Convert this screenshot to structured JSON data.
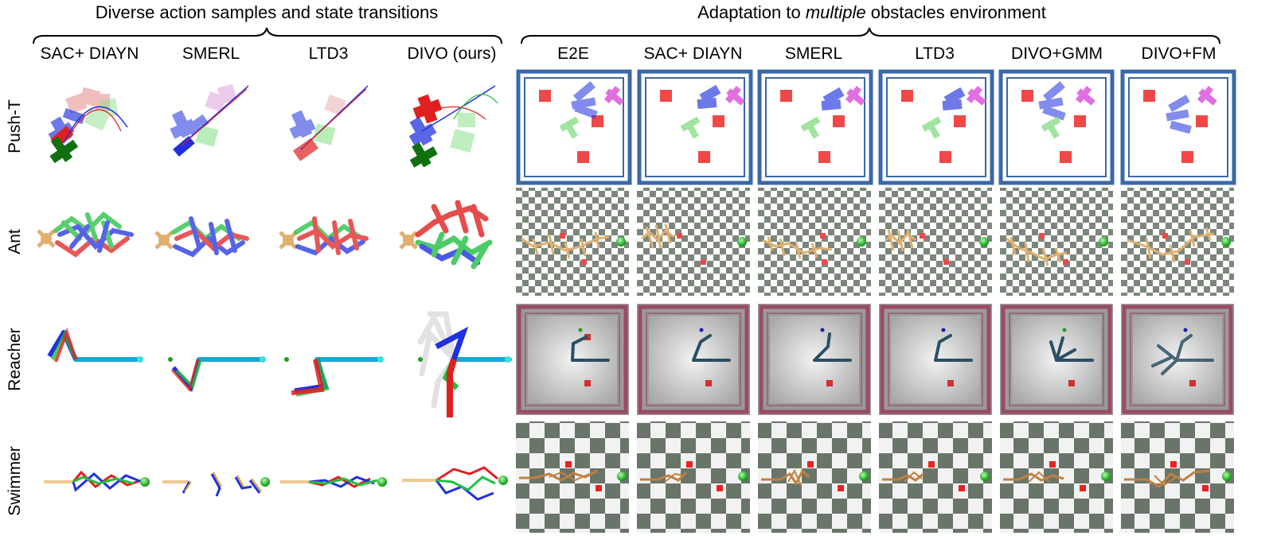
{
  "left_panel": {
    "title": "Diverse action samples and state transitions",
    "columns": [
      "SAC+ DIAYN",
      "SMERL",
      "LTD3",
      "DIVO (ours)"
    ]
  },
  "right_panel": {
    "title_prefix": "Adaptation to ",
    "title_emph": "multiple",
    "title_suffix": " obstacles environment",
    "columns": [
      "E2E",
      "SAC+ DIAYN",
      "SMERL",
      "LTD3",
      "DIVO+GMM",
      "DIVO+FM"
    ]
  },
  "rows": [
    "Push-T",
    "Ant",
    "Reacher",
    "Swimmer"
  ],
  "colors": {
    "red": "#e02020",
    "blue": "#2030e0",
    "green": "#20c040",
    "dark_green": "#107010",
    "pink": "#e070e0",
    "pusht_frame": "#3b68a8",
    "reacher_frame": "#9a4a68",
    "checker_dark": "#6e7a6e",
    "checker_light": "#ffffff",
    "obstacle": "#f04848",
    "ant_body": "#e0b070",
    "swimmer_body": "#c08040",
    "goal": "#22cc22",
    "arm": "#2b4f63",
    "reacher_arm_left": "#1aa4dc"
  },
  "icons": [
    "curly-brace-icon",
    "t-shape-icon",
    "ant-robot-icon",
    "reacher-arm-icon",
    "swimmer-icon",
    "goal-sphere-icon",
    "obstacle-cube-icon"
  ]
}
